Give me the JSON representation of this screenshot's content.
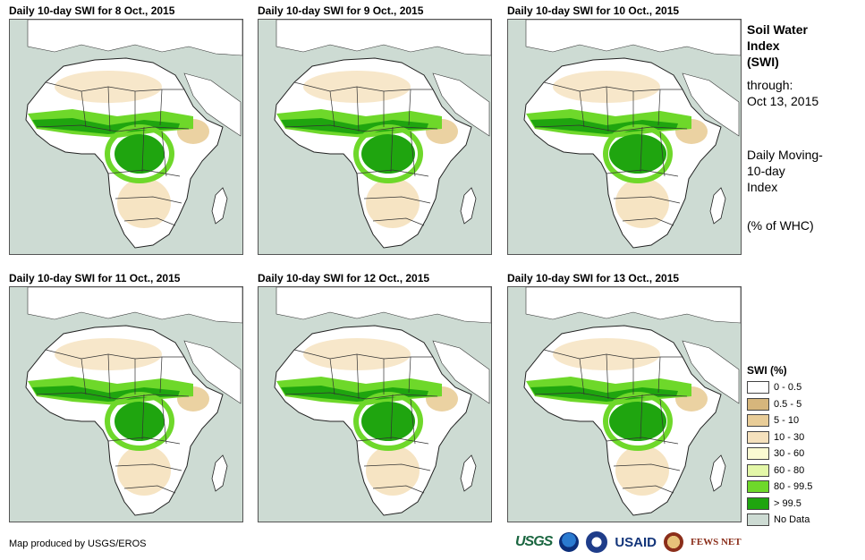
{
  "panels": [
    {
      "title": "Daily 10-day  SWI for 8 Oct., 2015"
    },
    {
      "title": "Daily 10-day  SWI for 9 Oct., 2015"
    },
    {
      "title": "Daily 10-day  SWI for 10 Oct., 2015"
    },
    {
      "title": "Daily 10-day  SWI for 11 Oct., 2015"
    },
    {
      "title": "Daily 10-day  SWI for 12 Oct., 2015"
    },
    {
      "title": "Daily 10-day  SWI for 13 Oct., 2015"
    }
  ],
  "side": {
    "title_line1": "Soil Water",
    "title_line2": "Index",
    "title_line3": "(SWI)",
    "through_label": "through:",
    "through_date": "Oct 13, 2015",
    "desc_line1": "Daily Moving-",
    "desc_line2": "10-day",
    "desc_line3": "Index",
    "unit": "(% of WHC)"
  },
  "legend": {
    "title": "SWI (%)",
    "items": [
      {
        "label": "0 - 0.5",
        "color": "#ffffff"
      },
      {
        "label": "0.5 - 5",
        "color": "#d6b67c"
      },
      {
        "label": "5 - 10",
        "color": "#e9cd98"
      },
      {
        "label": "10 - 30",
        "color": "#f5e1bd"
      },
      {
        "label": "30 - 60",
        "color": "#fafad2"
      },
      {
        "label": "60 - 80",
        "color": "#e3f7a8"
      },
      {
        "label": "80 - 99.5",
        "color": "#6ed82a"
      },
      {
        "label": "> 99.5",
        "color": "#1fa50f"
      },
      {
        "label": "No Data",
        "color": "#cddbd3"
      }
    ]
  },
  "credit": "Map produced by USGS/EROS",
  "logos": {
    "usgs": "USGS",
    "usaid": "USAID",
    "fews": "FEWS NET"
  }
}
